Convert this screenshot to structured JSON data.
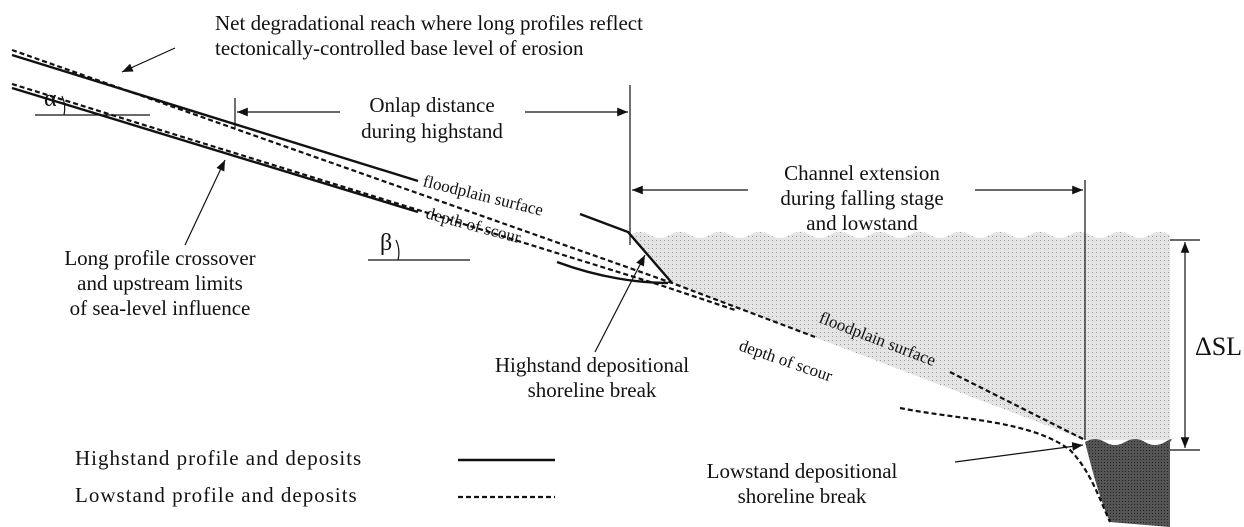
{
  "labels": {
    "degradational_reach": [
      "Net degradational reach where long profiles reflect",
      "tectonically-controlled base level of erosion"
    ],
    "onlap": [
      "Onlap distance",
      "during highstand"
    ],
    "channel_extension": [
      "Channel extension",
      "during falling stage",
      "and lowstand"
    ],
    "crossover": [
      "Long profile crossover",
      "and upstream limits",
      "of sea-level influence"
    ],
    "highstand_break": [
      "Highstand depositional",
      "shoreline break"
    ],
    "lowstand_break": [
      "Lowstand depositional",
      "shoreline break"
    ],
    "alpha": "α",
    "beta": "β",
    "delta_sl": "ΔSL"
  },
  "curve_labels": [
    "floodplain surface",
    "depth of scour",
    "floodplain surface",
    "depth of scour"
  ],
  "legend": [
    "Highstand profile and deposits",
    "Lowstand profile and deposits"
  ]
}
